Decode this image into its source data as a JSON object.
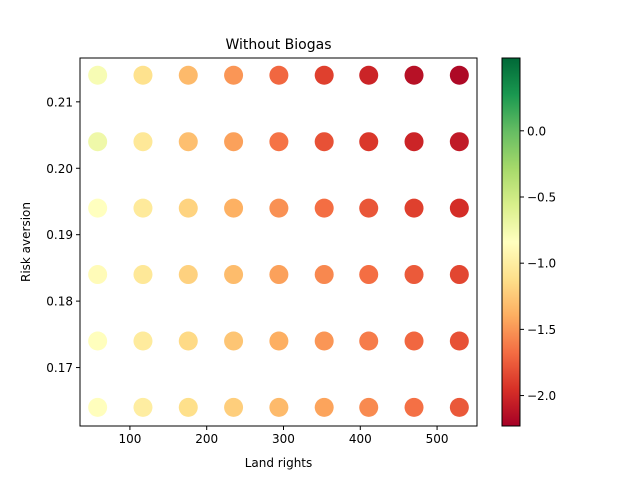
{
  "chart_data": {
    "type": "scatter",
    "title": "Without Biogas",
    "xlabel": "Land rights",
    "ylabel": "Risk aversion",
    "xlim": [
      35,
      552
    ],
    "ylim": [
      0.1612,
      0.2166
    ],
    "x_ticks": [
      100,
      200,
      300,
      400,
      500
    ],
    "x_tick_labels": [
      "100",
      "200",
      "300",
      "400",
      "500"
    ],
    "y_ticks": [
      0.17,
      0.18,
      0.19,
      0.2,
      0.21
    ],
    "y_tick_labels": [
      "0.17",
      "0.18",
      "0.19",
      "0.20",
      "0.21"
    ],
    "grid": false,
    "colorbar": {
      "colormap": "RdYlGn",
      "vmin": -2.23,
      "vmax": 0.55,
      "ticks": [
        -2.0,
        -1.5,
        -1.0,
        -0.5,
        0.0
      ],
      "tick_labels": [
        "−2.0",
        "−1.5",
        "−1.0",
        "−0.5",
        "0.0"
      ]
    },
    "x": [
      58,
      117,
      176,
      235,
      294,
      353,
      411,
      470,
      529
    ],
    "y": [
      0.164,
      0.174,
      0.184,
      0.194,
      0.204,
      0.214
    ],
    "values": [
      [
        -0.85,
        -1.0,
        -1.12,
        -1.22,
        -1.33,
        -1.44,
        -1.55,
        -1.66,
        -1.77
      ],
      [
        -0.85,
        -1.02,
        -1.15,
        -1.27,
        -1.39,
        -1.5,
        -1.61,
        -1.7,
        -1.8
      ],
      [
        -0.88,
        -1.05,
        -1.2,
        -1.32,
        -1.45,
        -1.56,
        -1.67,
        -1.76,
        -1.85
      ],
      [
        -0.84,
        -1.03,
        -1.19,
        -1.38,
        -1.52,
        -1.67,
        -1.78,
        -1.88,
        -1.97
      ],
      [
        -0.72,
        -1.05,
        -1.3,
        -1.45,
        -1.65,
        -1.8,
        -1.92,
        -2.02,
        -2.08
      ],
      [
        -0.78,
        -1.1,
        -1.33,
        -1.5,
        -1.7,
        -1.88,
        -2.02,
        -2.13,
        -2.18
      ]
    ]
  }
}
